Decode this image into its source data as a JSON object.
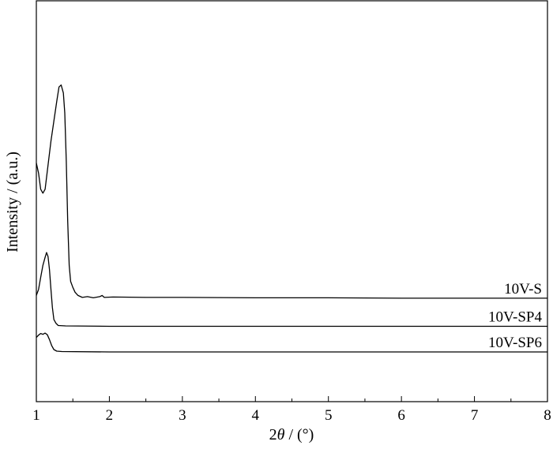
{
  "chart_data": {
    "type": "line",
    "xlabel_prefix": "2",
    "xlabel_symbol": "θ",
    "xlabel_suffix": " / (°)",
    "ylabel": "Intensity / (a.u.)",
    "xlim": [
      1,
      8
    ],
    "x_ticks": [
      "1",
      "2",
      "3",
      "4",
      "5",
      "6",
      "7",
      "8"
    ],
    "y_ticks_labeled": false,
    "grid": false,
    "series": [
      {
        "name": "10V-S",
        "color": "#000000",
        "points": [
          [
            1.0,
            0.595
          ],
          [
            1.03,
            0.57
          ],
          [
            1.06,
            0.53
          ],
          [
            1.09,
            0.52
          ],
          [
            1.12,
            0.53
          ],
          [
            1.16,
            0.59
          ],
          [
            1.2,
            0.65
          ],
          [
            1.24,
            0.7
          ],
          [
            1.28,
            0.75
          ],
          [
            1.31,
            0.785
          ],
          [
            1.34,
            0.79
          ],
          [
            1.37,
            0.77
          ],
          [
            1.39,
            0.72
          ],
          [
            1.41,
            0.6
          ],
          [
            1.43,
            0.45
          ],
          [
            1.45,
            0.34
          ],
          [
            1.47,
            0.3
          ],
          [
            1.5,
            0.285
          ],
          [
            1.53,
            0.273
          ],
          [
            1.57,
            0.265
          ],
          [
            1.63,
            0.26
          ],
          [
            1.7,
            0.262
          ],
          [
            1.78,
            0.259
          ],
          [
            1.87,
            0.262
          ],
          [
            1.9,
            0.265
          ],
          [
            1.93,
            0.26
          ],
          [
            2.05,
            0.261
          ],
          [
            2.5,
            0.26
          ],
          [
            3.0,
            0.26
          ],
          [
            4.0,
            0.259
          ],
          [
            5.0,
            0.259
          ],
          [
            6.0,
            0.258
          ],
          [
            7.0,
            0.258
          ],
          [
            8.0,
            0.258
          ]
        ]
      },
      {
        "name": "10V-SP4",
        "color": "#000000",
        "points": [
          [
            1.0,
            0.265
          ],
          [
            1.03,
            0.28
          ],
          [
            1.06,
            0.31
          ],
          [
            1.09,
            0.34
          ],
          [
            1.12,
            0.36
          ],
          [
            1.14,
            0.372
          ],
          [
            1.16,
            0.362
          ],
          [
            1.18,
            0.33
          ],
          [
            1.2,
            0.28
          ],
          [
            1.22,
            0.235
          ],
          [
            1.24,
            0.205
          ],
          [
            1.27,
            0.195
          ],
          [
            1.3,
            0.19
          ],
          [
            1.4,
            0.189
          ],
          [
            2.0,
            0.188
          ],
          [
            3.0,
            0.188
          ],
          [
            5.0,
            0.188
          ],
          [
            8.0,
            0.188
          ]
        ]
      },
      {
        "name": "10V-SP6",
        "color": "#000000",
        "points": [
          [
            1.0,
            0.16
          ],
          [
            1.03,
            0.166
          ],
          [
            1.06,
            0.17
          ],
          [
            1.09,
            0.168
          ],
          [
            1.12,
            0.171
          ],
          [
            1.15,
            0.167
          ],
          [
            1.18,
            0.155
          ],
          [
            1.21,
            0.14
          ],
          [
            1.24,
            0.13
          ],
          [
            1.28,
            0.126
          ],
          [
            1.35,
            0.125
          ],
          [
            2.0,
            0.124
          ],
          [
            4.0,
            0.124
          ],
          [
            8.0,
            0.124
          ]
        ]
      }
    ]
  }
}
